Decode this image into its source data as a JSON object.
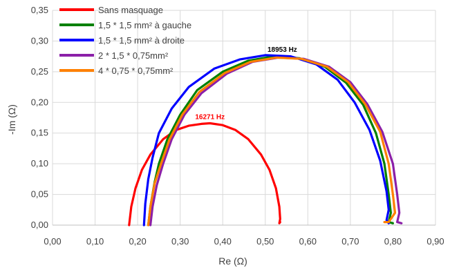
{
  "chart_data": {
    "type": "line",
    "title": "",
    "xlabel": "Re (Ω)",
    "ylabel": "-Im (Ω)",
    "xlim": [
      0,
      0.9
    ],
    "ylim": [
      0,
      0.35
    ],
    "xticks": [
      "0,00",
      "0,10",
      "0,20",
      "0,30",
      "0,40",
      "0,50",
      "0,60",
      "0,70",
      "0,80",
      "0,90"
    ],
    "yticks": [
      "0,00",
      "0,05",
      "0,10",
      "0,15",
      "0,20",
      "0,25",
      "0,30",
      "0,35"
    ],
    "grid": true,
    "legend_position": "top-left",
    "series": [
      {
        "name": "Sans masquage",
        "color": "#ff0000",
        "x": [
          0.18,
          0.185,
          0.195,
          0.21,
          0.23,
          0.26,
          0.29,
          0.32,
          0.35,
          0.37,
          0.4,
          0.43,
          0.46,
          0.49,
          0.51,
          0.525,
          0.533,
          0.535,
          0.533,
          0.535
        ],
        "y": [
          0.0,
          0.03,
          0.06,
          0.09,
          0.115,
          0.14,
          0.155,
          0.162,
          0.165,
          0.166,
          0.163,
          0.155,
          0.14,
          0.115,
          0.09,
          0.06,
          0.03,
          0.01,
          0.003,
          0.005
        ]
      },
      {
        "name": "1,5 * 1,5 mm² à gauche",
        "color": "#008000",
        "x": [
          0.225,
          0.23,
          0.24,
          0.25,
          0.27,
          0.3,
          0.34,
          0.4,
          0.46,
          0.52,
          0.58,
          0.64,
          0.69,
          0.73,
          0.76,
          0.78,
          0.79,
          0.795,
          0.79,
          0.8
        ],
        "y": [
          0.0,
          0.03,
          0.07,
          0.1,
          0.14,
          0.18,
          0.22,
          0.25,
          0.268,
          0.275,
          0.272,
          0.258,
          0.232,
          0.196,
          0.15,
          0.1,
          0.05,
          0.02,
          0.005,
          0.003
        ]
      },
      {
        "name": "1,5 * 1,5 mm² à droite",
        "color": "#0000ff",
        "x": [
          0.215,
          0.218,
          0.225,
          0.235,
          0.25,
          0.28,
          0.32,
          0.38,
          0.44,
          0.5,
          0.56,
          0.62,
          0.67,
          0.71,
          0.745,
          0.77,
          0.785,
          0.79,
          0.785,
          0.79
        ],
        "y": [
          0.0,
          0.035,
          0.075,
          0.11,
          0.15,
          0.19,
          0.225,
          0.255,
          0.27,
          0.277,
          0.275,
          0.262,
          0.237,
          0.2,
          0.155,
          0.105,
          0.055,
          0.025,
          0.008,
          0.003
        ]
      },
      {
        "name": "2 * 1,5 * 0,75mm²",
        "color": "#8b1fa8",
        "x": [
          0.23,
          0.235,
          0.245,
          0.26,
          0.28,
          0.31,
          0.35,
          0.41,
          0.47,
          0.53,
          0.59,
          0.65,
          0.7,
          0.74,
          0.775,
          0.8,
          0.81,
          0.815,
          0.81,
          0.82
        ],
        "y": [
          0.0,
          0.03,
          0.065,
          0.1,
          0.14,
          0.18,
          0.215,
          0.247,
          0.266,
          0.273,
          0.271,
          0.258,
          0.233,
          0.197,
          0.152,
          0.1,
          0.05,
          0.02,
          0.005,
          0.003
        ]
      },
      {
        "name": "4 * 0,75 * 0,75mm²",
        "color": "#ff8000",
        "x": [
          0.225,
          0.23,
          0.24,
          0.255,
          0.275,
          0.305,
          0.345,
          0.405,
          0.465,
          0.525,
          0.585,
          0.645,
          0.695,
          0.735,
          0.77,
          0.79,
          0.8,
          0.805,
          0.79,
          0.78
        ],
        "y": [
          0.0,
          0.03,
          0.068,
          0.1,
          0.14,
          0.18,
          0.217,
          0.248,
          0.266,
          0.273,
          0.271,
          0.258,
          0.233,
          0.197,
          0.152,
          0.1,
          0.05,
          0.02,
          0.005,
          0.005
        ]
      }
    ],
    "annotations": [
      {
        "text": "18953 Hz",
        "x": 0.54,
        "y": 0.278,
        "color": "#000000"
      },
      {
        "text": "16271 Hz",
        "x": 0.37,
        "y": 0.168,
        "color": "#ff0000"
      }
    ]
  }
}
